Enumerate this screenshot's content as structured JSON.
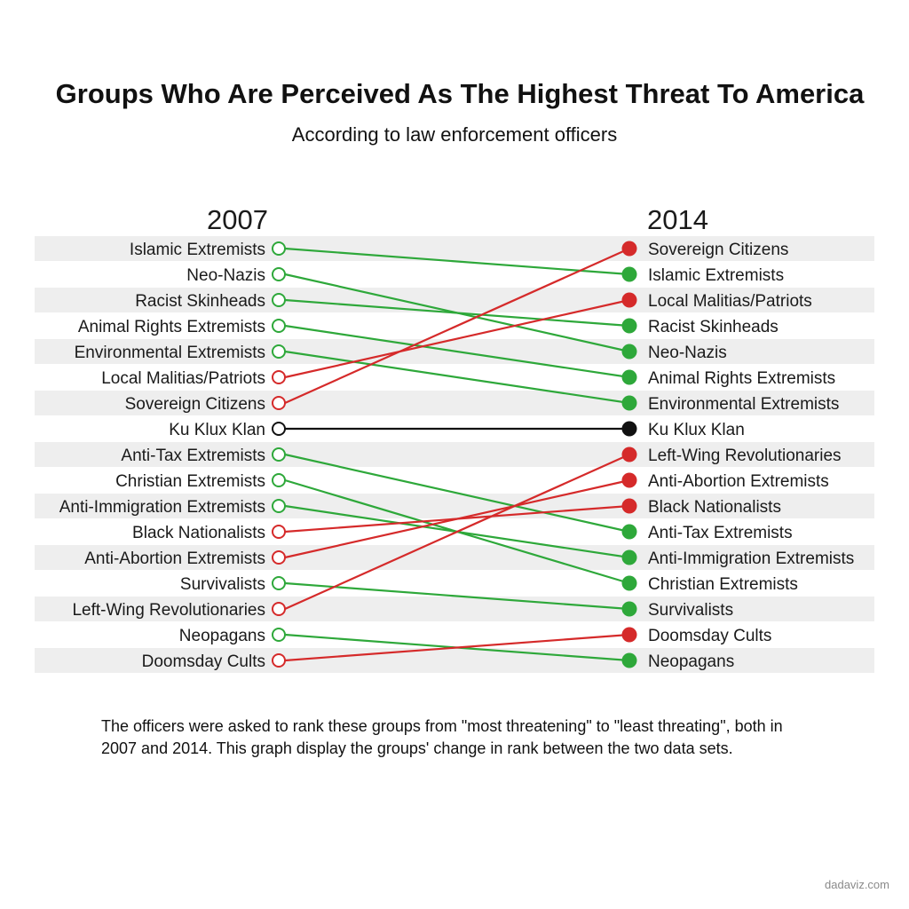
{
  "header": {
    "title": "Groups Who Are Perceived As The Highest Threat To America",
    "subtitle": "According to law enforcement officers"
  },
  "chart_data": {
    "type": "slope",
    "left_label": "2007",
    "right_label": "2014",
    "left_ranking": [
      "Islamic Extremists",
      "Neo-Nazis",
      "Racist Skinheads",
      "Animal Rights Extremists",
      "Environmental Extremists",
      "Local Malitias/Patriots",
      "Sovereign Citizens",
      "Ku Klux Klan",
      "Anti-Tax Extremists",
      "Christian Extremists",
      "Anti-Immigration Extremists",
      "Black Nationalists",
      "Anti-Abortion Extremists",
      "Survivalists",
      "Left-Wing Revolutionaries",
      "Neopagans",
      "Doomsday Cults"
    ],
    "right_ranking": [
      "Sovereign Citizens",
      "Islamic Extremists",
      "Local Malitias/Patriots",
      "Racist Skinheads",
      "Neo-Nazis",
      "Animal Rights Extremists",
      "Environmental Extremists",
      "Ku Klux Klan",
      "Left-Wing Revolutionaries",
      "Anti-Abortion Extremists",
      "Black Nationalists",
      "Anti-Tax Extremists",
      "Anti-Immigration Extremists",
      "Christian Extremists",
      "Survivalists",
      "Doomsday Cults",
      "Neopagans"
    ],
    "series": [
      {
        "name": "Islamic Extremists",
        "rank_2007": 1,
        "rank_2014": 2,
        "trend": "down"
      },
      {
        "name": "Neo-Nazis",
        "rank_2007": 2,
        "rank_2014": 5,
        "trend": "down"
      },
      {
        "name": "Racist Skinheads",
        "rank_2007": 3,
        "rank_2014": 4,
        "trend": "down"
      },
      {
        "name": "Animal Rights Extremists",
        "rank_2007": 4,
        "rank_2014": 6,
        "trend": "down"
      },
      {
        "name": "Environmental Extremists",
        "rank_2007": 5,
        "rank_2014": 7,
        "trend": "down"
      },
      {
        "name": "Local Malitias/Patriots",
        "rank_2007": 6,
        "rank_2014": 3,
        "trend": "up"
      },
      {
        "name": "Sovereign Citizens",
        "rank_2007": 7,
        "rank_2014": 1,
        "trend": "up"
      },
      {
        "name": "Ku Klux Klan",
        "rank_2007": 8,
        "rank_2014": 8,
        "trend": "same"
      },
      {
        "name": "Anti-Tax Extremists",
        "rank_2007": 9,
        "rank_2014": 12,
        "trend": "down"
      },
      {
        "name": "Christian Extremists",
        "rank_2007": 10,
        "rank_2014": 14,
        "trend": "down"
      },
      {
        "name": "Anti-Immigration Extremists",
        "rank_2007": 11,
        "rank_2014": 13,
        "trend": "down"
      },
      {
        "name": "Black Nationalists",
        "rank_2007": 12,
        "rank_2014": 11,
        "trend": "up"
      },
      {
        "name": "Anti-Abortion Extremists",
        "rank_2007": 13,
        "rank_2014": 10,
        "trend": "up"
      },
      {
        "name": "Survivalists",
        "rank_2007": 14,
        "rank_2014": 15,
        "trend": "down"
      },
      {
        "name": "Left-Wing Revolutionaries",
        "rank_2007": 15,
        "rank_2014": 9,
        "trend": "up"
      },
      {
        "name": "Neopagans",
        "rank_2007": 16,
        "rank_2014": 17,
        "trend": "down"
      },
      {
        "name": "Doomsday Cults",
        "rank_2007": 17,
        "rank_2014": 16,
        "trend": "up"
      }
    ],
    "colors": {
      "up": "#d52a2a",
      "down": "#2ea83a",
      "same": "#111111",
      "stripe": "#eeeeee"
    }
  },
  "footnote": "The officers were asked to rank these groups from \"most threatening\" to \"least threating\", both in 2007 and 2014. This graph display the groups' change in rank between the two data sets.",
  "credit": "dadaviz.com"
}
